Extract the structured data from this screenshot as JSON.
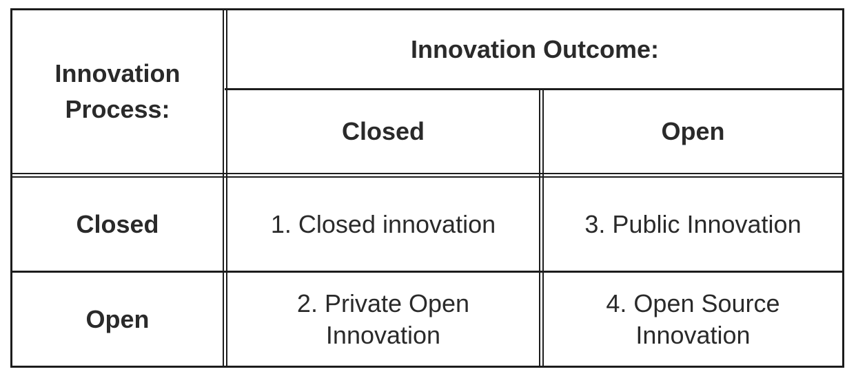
{
  "table": {
    "process_header": [
      "Innovation",
      "Process:"
    ],
    "outcome_header": "Innovation Outcome:",
    "columns": [
      "Closed",
      "Open"
    ],
    "rows": [
      {
        "label": "Closed",
        "cells": [
          [
            "1. Closed innovation"
          ],
          [
            "3. Public Innovation"
          ]
        ]
      },
      {
        "label": "Open",
        "cells": [
          [
            "2. Private Open",
            "Innovation"
          ],
          [
            "4. Open Source",
            "Innovation"
          ]
        ]
      }
    ]
  }
}
